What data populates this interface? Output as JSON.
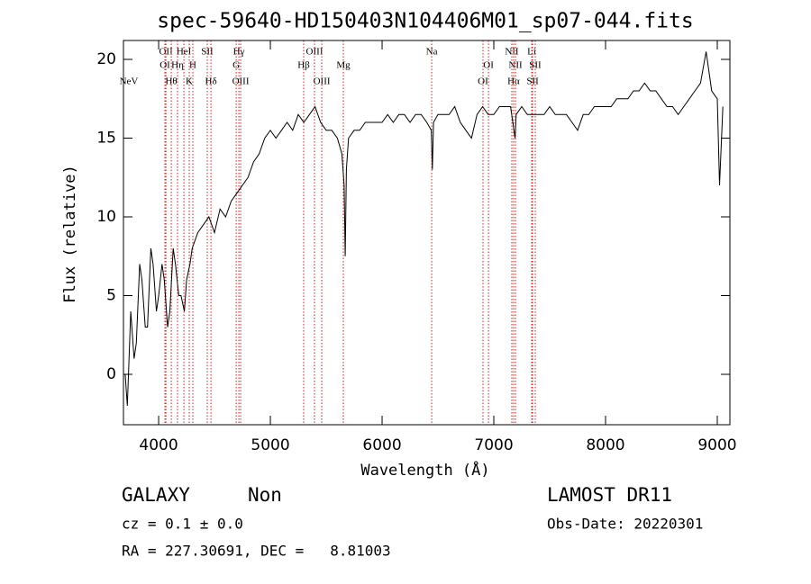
{
  "chart_data": {
    "type": "line",
    "title": "spec-59640-HD150403N104406M01_sp07-044.fits",
    "xlabel": "Wavelength (Å)",
    "ylabel": "Flux (relative)",
    "xlim": [
      3685,
      9113
    ],
    "ylim": [
      -3.2,
      21.2
    ],
    "xticks": [
      4000,
      5000,
      6000,
      7000,
      8000,
      9000
    ],
    "yticks": [
      0,
      5,
      10,
      15,
      20
    ],
    "color": "#000000",
    "line_color": "#cc2222",
    "x": [
      3700,
      3720,
      3750,
      3780,
      3800,
      3830,
      3850,
      3880,
      3900,
      3930,
      3950,
      3980,
      4000,
      4030,
      4050,
      4080,
      4100,
      4130,
      4150,
      4180,
      4200,
      4230,
      4250,
      4280,
      4300,
      4350,
      4400,
      4450,
      4500,
      4550,
      4600,
      4650,
      4700,
      4750,
      4800,
      4850,
      4900,
      4950,
      5000,
      5050,
      5100,
      5150,
      5200,
      5250,
      5300,
      5350,
      5400,
      5450,
      5500,
      5550,
      5600,
      5640,
      5660,
      5670,
      5680,
      5700,
      5750,
      5800,
      5850,
      5900,
      5950,
      6000,
      6050,
      6100,
      6150,
      6200,
      6250,
      6300,
      6350,
      6400,
      6440,
      6450,
      6460,
      6500,
      6550,
      6600,
      6650,
      6700,
      6750,
      6800,
      6850,
      6900,
      6950,
      7000,
      7050,
      7100,
      7150,
      7190,
      7200,
      7250,
      7300,
      7350,
      7400,
      7450,
      7500,
      7550,
      7600,
      7650,
      7700,
      7750,
      7800,
      7850,
      7900,
      7950,
      8000,
      8050,
      8100,
      8150,
      8200,
      8250,
      8300,
      8350,
      8400,
      8450,
      8500,
      8550,
      8600,
      8650,
      8700,
      8750,
      8800,
      8850,
      8900,
      8950,
      9000,
      9020,
      9050
    ],
    "values": [
      0,
      -2,
      4,
      1,
      2,
      7,
      6,
      3,
      3,
      8,
      7,
      4,
      5,
      7,
      6,
      3,
      4,
      8,
      7,
      5,
      5,
      4,
      6,
      7,
      8,
      9,
      9.5,
      10,
      9,
      10.5,
      10,
      11,
      11.5,
      12,
      12.5,
      13.5,
      14,
      15,
      15.5,
      15,
      15.5,
      16,
      15.5,
      16.5,
      16,
      16.5,
      17,
      16,
      15.5,
      15.5,
      15,
      14,
      12,
      7.5,
      13,
      15,
      15.5,
      15.5,
      16,
      16,
      16,
      16,
      16.5,
      16,
      16.5,
      16.5,
      16,
      16.5,
      16.5,
      16,
      15.5,
      13,
      16,
      16.5,
      16.5,
      16.5,
      17,
      16,
      15.5,
      15,
      16.5,
      17,
      16.5,
      16.5,
      17,
      17,
      17,
      15,
      16.5,
      17,
      16.5,
      16.5,
      16.5,
      16.5,
      17,
      16.5,
      16.5,
      16.5,
      16,
      15.5,
      16.5,
      16.5,
      17,
      17,
      17,
      17,
      17.5,
      17.5,
      17.5,
      18,
      18,
      18.5,
      18,
      18,
      17.5,
      17,
      17,
      16.5,
      17,
      17.5,
      18,
      18.5,
      20.5,
      18,
      17.5,
      12,
      17
    ],
    "annotations": [
      {
        "label": "OII",
        "x": 4065
      },
      {
        "label": "HeI",
        "x": 4226
      },
      {
        "label": "SII",
        "x": 4435
      },
      {
        "label": "Hγ",
        "x": 4718
      },
      {
        "label": "OIII",
        "x": 5395
      },
      {
        "label": "Na",
        "x": 6444
      },
      {
        "label": "NII",
        "x": 7161
      },
      {
        "label": "Li",
        "x": 7339
      },
      {
        "label": "OI",
        "x": 4056
      },
      {
        "label": "Hη",
        "x": 4169
      },
      {
        "label": "H",
        "x": 4306
      },
      {
        "label": "G",
        "x": 4694
      },
      {
        "label": "Hβ",
        "x": 5298
      },
      {
        "label": "Mg",
        "x": 5653
      },
      {
        "label": "OI",
        "x": 6952
      },
      {
        "label": "NII",
        "x": 7194
      },
      {
        "label": "SII",
        "x": 7371
      },
      {
        "label": "NeV",
        "x": 3685
      },
      {
        "label": "Hθ",
        "x": 4113
      },
      {
        "label": "K",
        "x": 4274
      },
      {
        "label": "Hδ",
        "x": 4468
      },
      {
        "label": "OIII",
        "x": 4734
      },
      {
        "label": "OIII",
        "x": 5460
      },
      {
        "label": "OI",
        "x": 6903
      },
      {
        "label": "Hα",
        "x": 7177
      },
      {
        "label": "SII",
        "x": 7347
      }
    ]
  },
  "info": {
    "class": "GALAXY",
    "subclass": "Non",
    "survey": "LAMOST DR11",
    "cz": "cz = 0.1 ± 0.0",
    "obs_date": "Obs-Date: 20220301",
    "coords": "RA = 227.30691, DEC =   8.81003"
  }
}
